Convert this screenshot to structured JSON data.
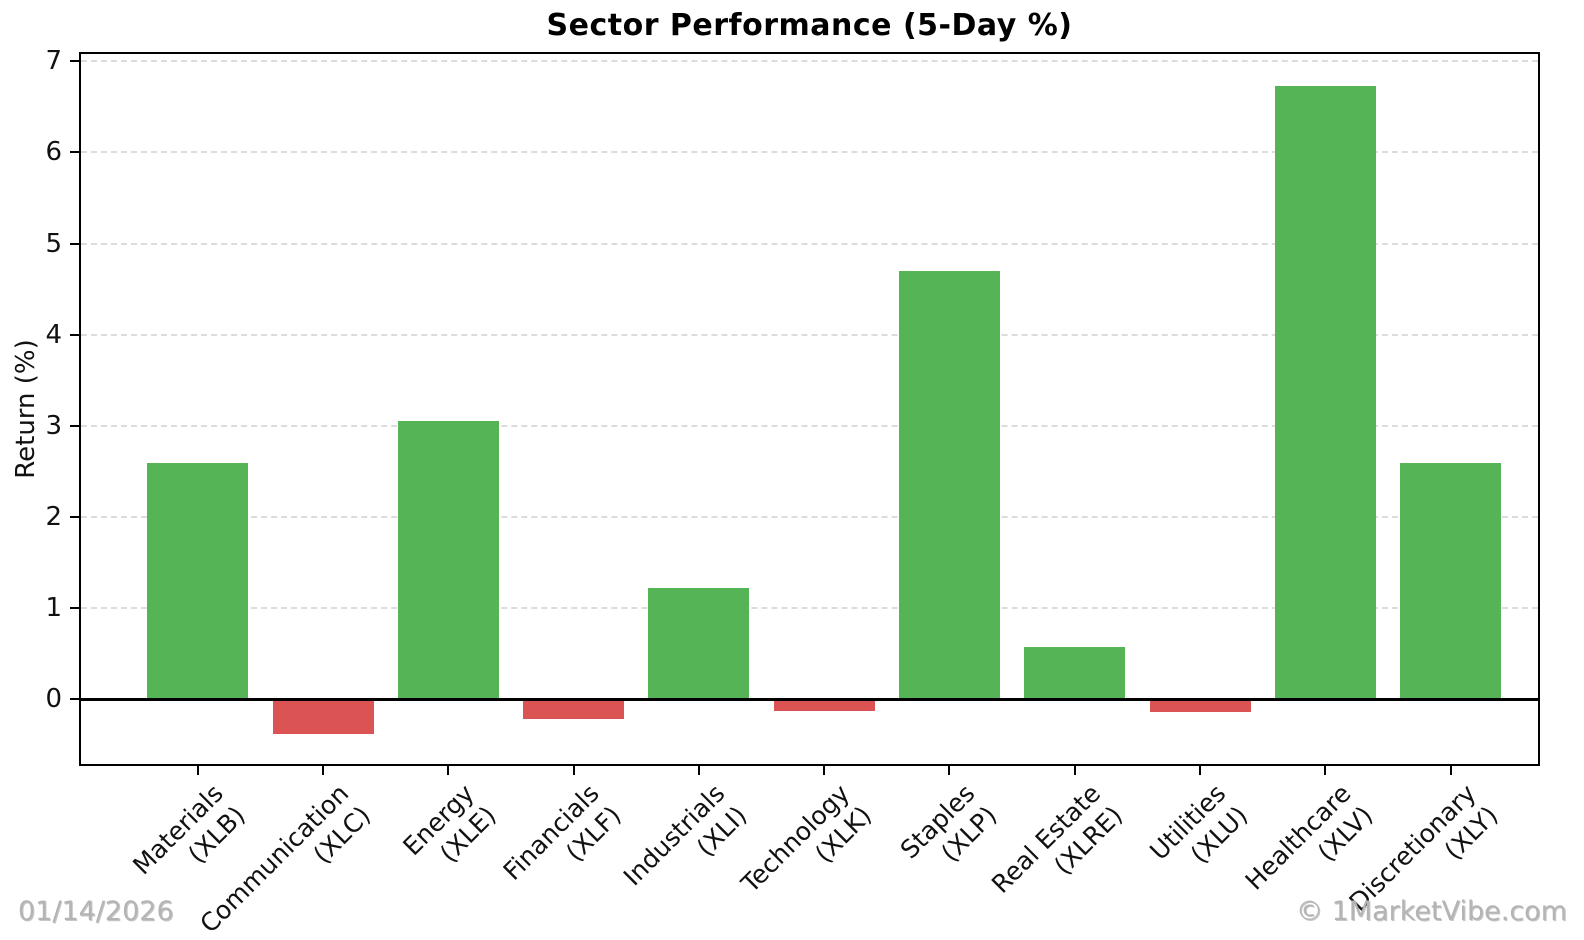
{
  "header": {
    "title": "Sector Performance (5-Day %)"
  },
  "footer": {
    "date": "01/14/2026",
    "watermark": "© 1MarketVibe.com"
  },
  "chart_data": {
    "type": "bar",
    "title": "Sector Performance (5-Day %)",
    "xlabel": "",
    "ylabel": "Return (%)",
    "categories": [
      {
        "sector": "Materials",
        "ticker": "(XLB)"
      },
      {
        "sector": "Communication",
        "ticker": "(XLC)"
      },
      {
        "sector": "Energy",
        "ticker": "(XLE)"
      },
      {
        "sector": "Financials",
        "ticker": "(XLF)"
      },
      {
        "sector": "Industrials",
        "ticker": "(XLI)"
      },
      {
        "sector": "Technology",
        "ticker": "(XLK)"
      },
      {
        "sector": "Staples",
        "ticker": "(XLP)"
      },
      {
        "sector": "Real Estate",
        "ticker": "(XLRE)"
      },
      {
        "sector": "Utilities",
        "ticker": "(XLU)"
      },
      {
        "sector": "Healthcare",
        "ticker": "(XLV)"
      },
      {
        "sector": "Discretionary",
        "ticker": "(XLY)"
      }
    ],
    "values": [
      2.59,
      -0.38,
      3.05,
      -0.22,
      1.22,
      -0.13,
      4.7,
      0.57,
      -0.14,
      6.73,
      2.59
    ],
    "yticks": [
      0,
      1,
      2,
      3,
      4,
      5,
      6,
      7
    ],
    "ylim": [
      -0.71,
      7.08
    ],
    "grid": "horizontal dashed",
    "legend_position": "none",
    "colors": {
      "positive_bar": "#55b456",
      "negative_bar": "#db5353",
      "gridline": "#dcdcdc",
      "spine": "#000000",
      "text": "#111111",
      "muted_text": "#b4b4b4"
    }
  }
}
